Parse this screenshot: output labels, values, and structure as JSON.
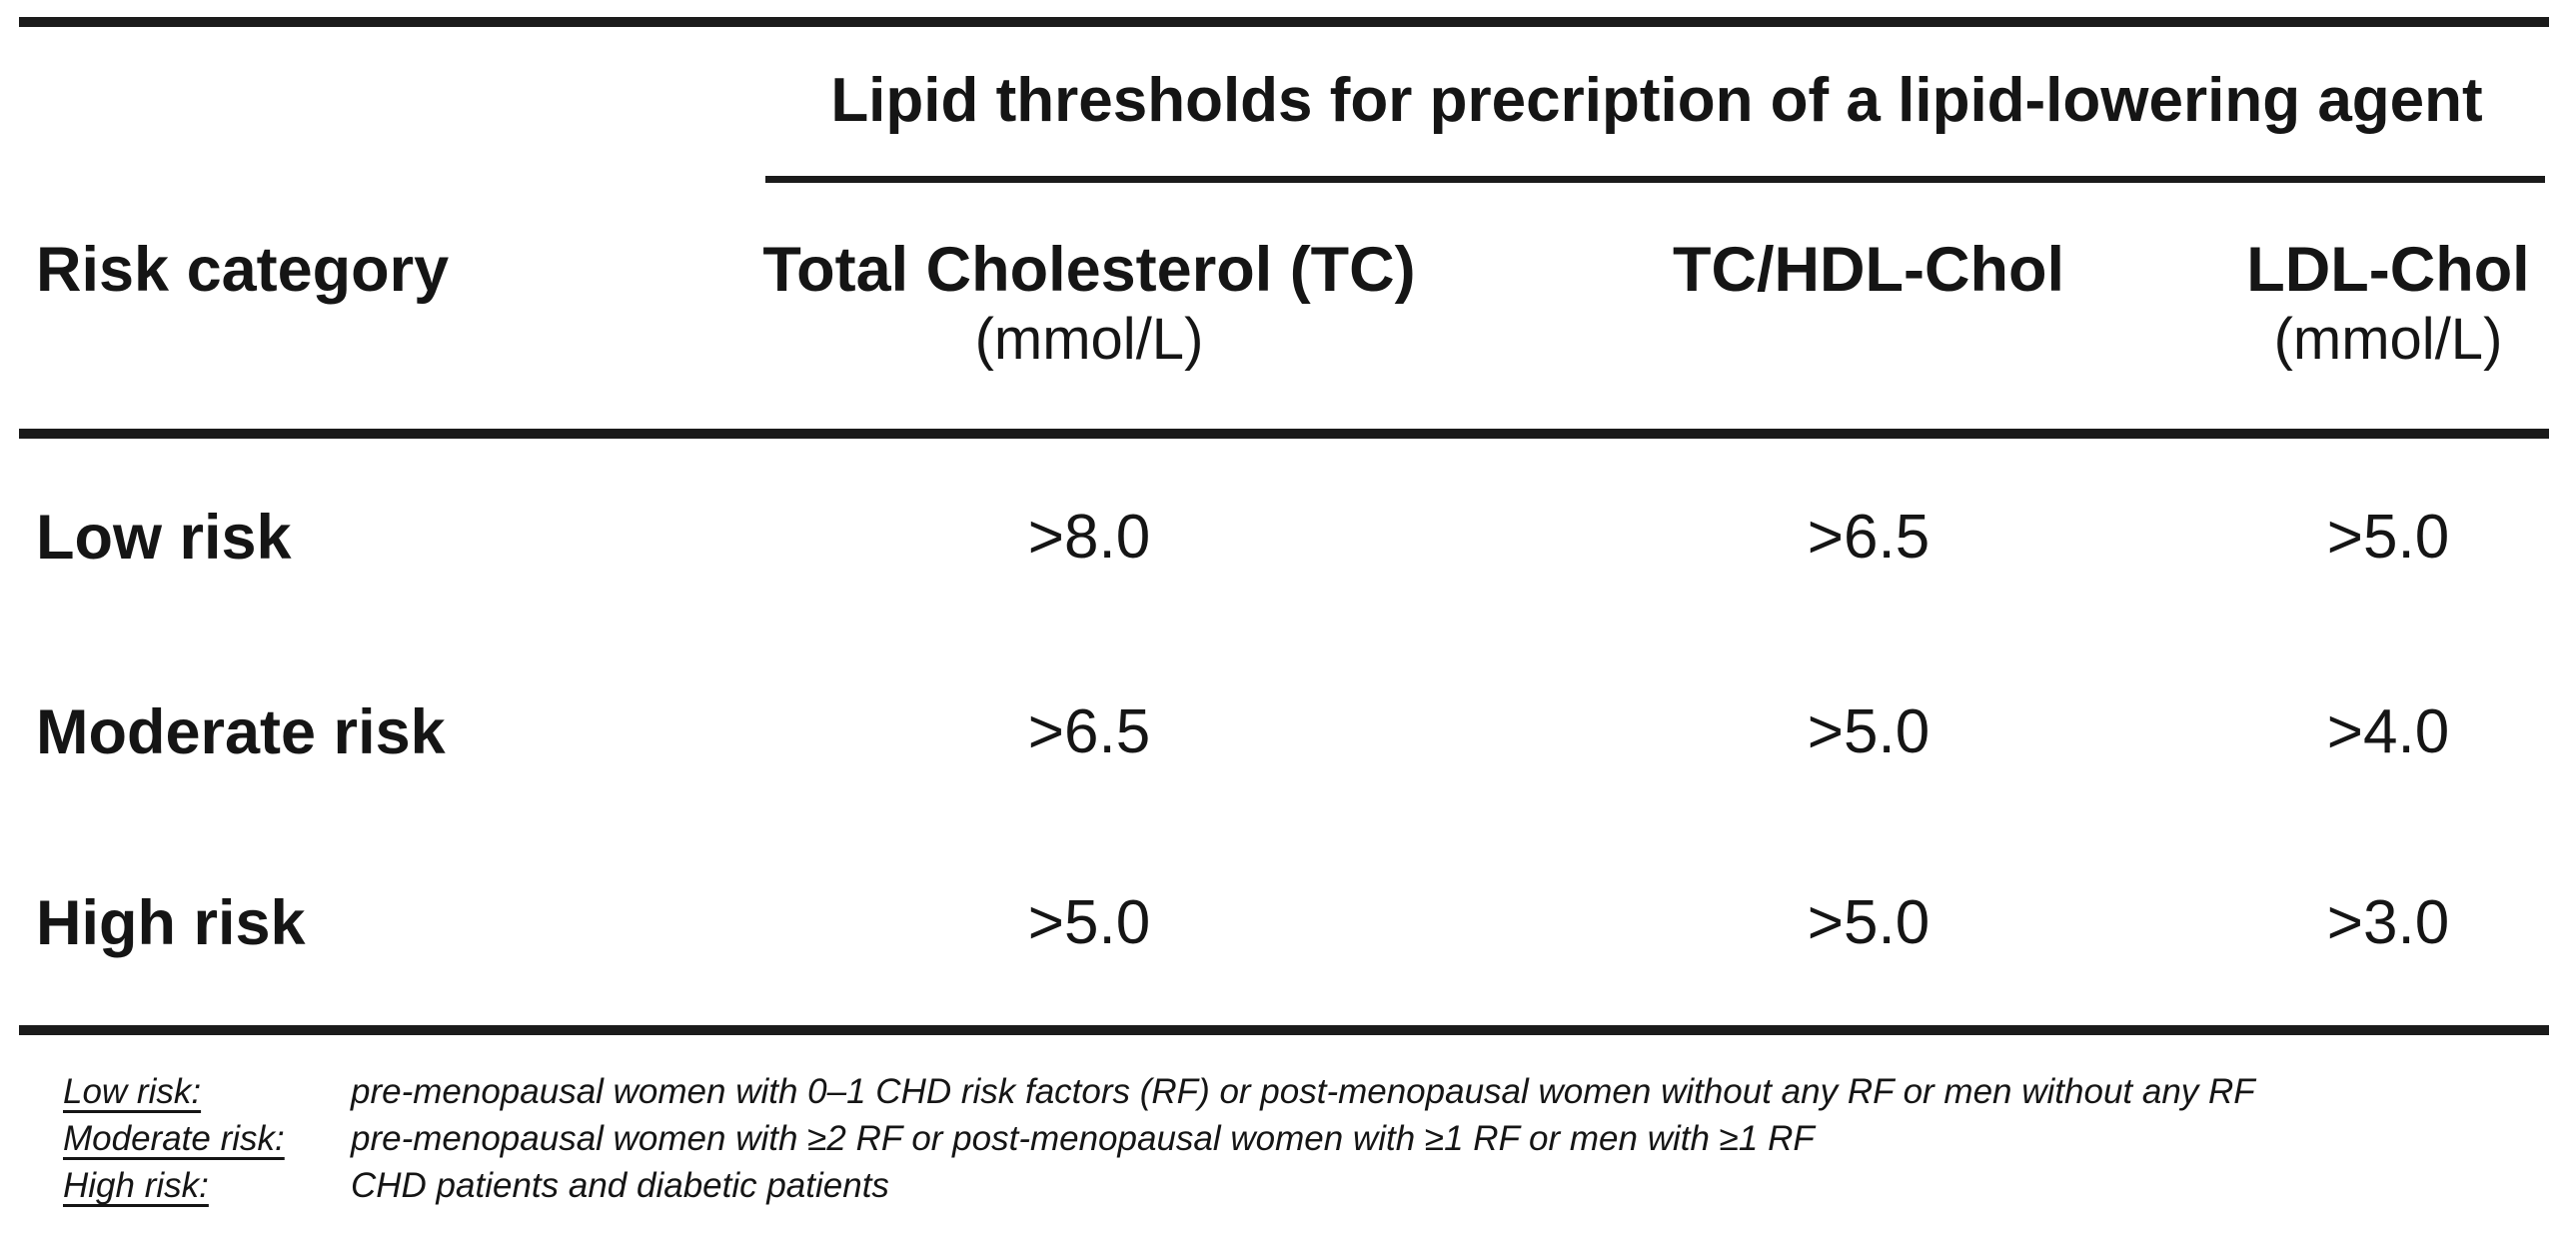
{
  "page": {
    "background": "#ffffff",
    "text_color": "#151515",
    "rule_color": "#1b1b1b"
  },
  "table": {
    "spanner_title": "Lipid thresholds for precription of a lipid-lowering agent",
    "header": {
      "risk_category": "Risk category",
      "columns": [
        {
          "label": "Total Cholesterol (TC)",
          "unit": "(mmol/L)"
        },
        {
          "label": "TC/HDL-Chol",
          "unit": ""
        },
        {
          "label": "LDL-Chol",
          "unit": "(mmol/L)"
        }
      ]
    },
    "rows": [
      {
        "category": "Low risk",
        "values": [
          ">8.0",
          ">6.5",
          ">5.0"
        ]
      },
      {
        "category": "Moderate risk",
        "values": [
          ">6.5",
          ">5.0",
          ">4.0"
        ]
      },
      {
        "category": "High risk",
        "values": [
          ">5.0",
          ">5.0",
          ">3.0"
        ]
      }
    ]
  },
  "footnotes": [
    {
      "term": "Low risk:",
      "definition": "pre-menopausal women with 0–1 CHD risk factors (RF) or post-menopausal women without any RF or men without any RF"
    },
    {
      "term": "Moderate risk:",
      "definition": "pre-menopausal women with ≥2 RF or post-menopausal women with ≥1 RF or men with ≥1 RF"
    },
    {
      "term": "High risk:",
      "definition": "CHD patients and diabetic patients"
    }
  ]
}
